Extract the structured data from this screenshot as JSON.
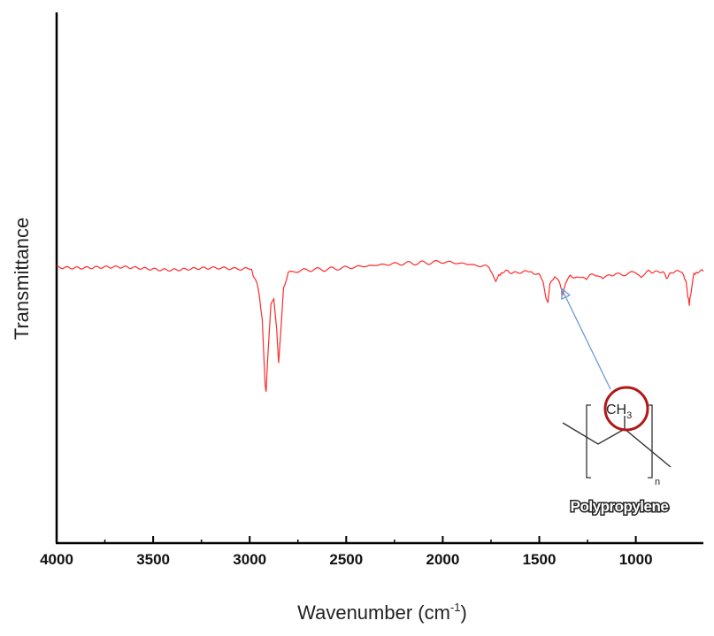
{
  "chart_data": {
    "type": "line",
    "title": "",
    "xlabel": "Wavenumber (cm",
    "xlabel_superscript": "-1",
    "xlabel_suffix": ")",
    "ylabel": "Transmittance",
    "xlim": [
      4000,
      650
    ],
    "x_reversed": true,
    "ylim": [
      0,
      1
    ],
    "y_tick_labels_shown": false,
    "grid": false,
    "legend": "none",
    "x_ticks": [
      4000,
      3500,
      3000,
      2500,
      2000,
      1500,
      1000
    ],
    "x_tick_labels": [
      "4000",
      "3500",
      "3000",
      "2500",
      "2000",
      "1500",
      "1000"
    ],
    "series": [
      {
        "color": "#ff2a2a",
        "description_points": [
          [
            4000,
            0.52
          ],
          [
            3800,
            0.52
          ],
          [
            3600,
            0.518
          ],
          [
            3400,
            0.516
          ],
          [
            3200,
            0.517
          ],
          [
            3050,
            0.518
          ],
          [
            2990,
            0.515
          ],
          [
            2955,
            0.48
          ],
          [
            2935,
            0.42
          ],
          [
            2920,
            0.3
          ],
          [
            2915,
            0.285
          ],
          [
            2905,
            0.36
          ],
          [
            2890,
            0.45
          ],
          [
            2875,
            0.46
          ],
          [
            2860,
            0.4
          ],
          [
            2850,
            0.34
          ],
          [
            2840,
            0.39
          ],
          [
            2825,
            0.48
          ],
          [
            2800,
            0.51
          ],
          [
            2700,
            0.515
          ],
          [
            2600,
            0.516
          ],
          [
            2500,
            0.519
          ],
          [
            2400,
            0.522
          ],
          [
            2300,
            0.525
          ],
          [
            2200,
            0.527
          ],
          [
            2100,
            0.528
          ],
          [
            2000,
            0.53
          ],
          [
            1900,
            0.527
          ],
          [
            1800,
            0.522
          ],
          [
            1760,
            0.52
          ],
          [
            1740,
            0.505
          ],
          [
            1725,
            0.496
          ],
          [
            1710,
            0.506
          ],
          [
            1690,
            0.512
          ],
          [
            1640,
            0.51
          ],
          [
            1600,
            0.512
          ],
          [
            1540,
            0.51
          ],
          [
            1500,
            0.505
          ],
          [
            1480,
            0.49
          ],
          [
            1465,
            0.46
          ],
          [
            1455,
            0.455
          ],
          [
            1445,
            0.485
          ],
          [
            1420,
            0.505
          ],
          [
            1395,
            0.49
          ],
          [
            1378,
            0.47
          ],
          [
            1365,
            0.49
          ],
          [
            1340,
            0.505
          ],
          [
            1300,
            0.5
          ],
          [
            1255,
            0.5
          ],
          [
            1230,
            0.504
          ],
          [
            1200,
            0.507
          ],
          [
            1170,
            0.498
          ],
          [
            1150,
            0.505
          ],
          [
            1100,
            0.505
          ],
          [
            1000,
            0.51
          ],
          [
            973,
            0.5
          ],
          [
            950,
            0.51
          ],
          [
            900,
            0.512
          ],
          [
            860,
            0.513
          ],
          [
            841,
            0.5
          ],
          [
            820,
            0.512
          ],
          [
            760,
            0.51
          ],
          [
            740,
            0.49
          ],
          [
            730,
            0.465
          ],
          [
            723,
            0.45
          ],
          [
            715,
            0.47
          ],
          [
            700,
            0.505
          ],
          [
            680,
            0.51
          ],
          [
            650,
            0.512
          ]
        ]
      }
    ],
    "annotation": {
      "label": "Polypropylene",
      "group_label": "CH",
      "group_subscript": "3",
      "repeat_subscript": "n",
      "arrow_target_x": 1385,
      "arrow_target_y": 0.48,
      "circle_color": "#b01818",
      "arrow_color": "#6c9bd2"
    }
  }
}
